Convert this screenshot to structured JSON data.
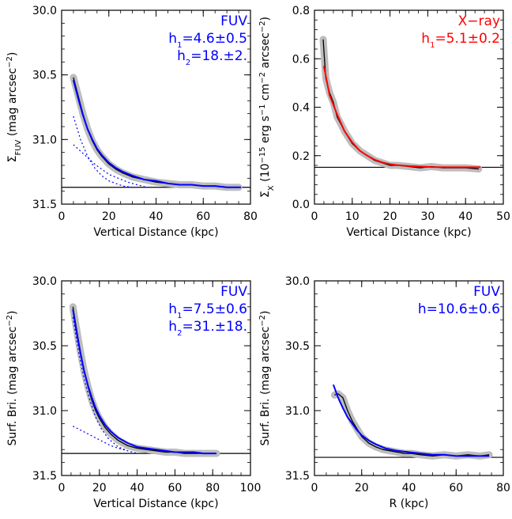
{
  "chart_data": [
    {
      "type": "line",
      "panel": "top-left",
      "xlabel": "Vertical Distance (kpc)",
      "ylabel_parts": [
        {
          "t": "Σ",
          "s": ""
        },
        {
          "t": "FUV",
          "s": "sub"
        },
        {
          "t": " (mag arcsec",
          "s": ""
        },
        {
          "t": "−2",
          "s": "sup"
        },
        {
          "t": ")",
          "s": ""
        }
      ],
      "xlim": [
        0,
        80
      ],
      "ylim": [
        31.5,
        30.0
      ],
      "y_inverted": true,
      "xticks": [
        0,
        20,
        40,
        60,
        80
      ],
      "yticks": [
        30.0,
        30.5,
        31.0,
        31.5
      ],
      "ytick_labels": [
        "30.0",
        "30.5",
        "31.0",
        "31.5"
      ],
      "baseline": 31.37,
      "annotations": {
        "color": "#0000ff",
        "lines": [
          [
            {
              "t": "FUV",
              "s": ""
            }
          ],
          [
            {
              "t": "h",
              "s": ""
            },
            {
              "t": "1",
              "s": "sub"
            },
            {
              "t": "=4.6±0.5",
              "s": ""
            }
          ],
          [
            {
              "t": "h",
              "s": ""
            },
            {
              "t": "2",
              "s": "sub"
            },
            {
              "t": "=18.±2.",
              "s": ""
            }
          ]
        ]
      },
      "series": [
        {
          "role": "data",
          "color": "#000000",
          "x": [
            5,
            7,
            9,
            11,
            13,
            15,
            17,
            20,
            23,
            26,
            30,
            35,
            40,
            45,
            50,
            55,
            60,
            65,
            70,
            75
          ],
          "y": [
            30.52,
            30.66,
            30.8,
            30.92,
            31.01,
            31.08,
            31.13,
            31.19,
            31.23,
            31.26,
            31.29,
            31.31,
            31.33,
            31.34,
            31.35,
            31.35,
            31.36,
            31.36,
            31.37,
            31.37
          ]
        },
        {
          "role": "fit-total",
          "color": "#0000ff",
          "x": [
            5,
            7,
            9,
            11,
            13,
            15,
            17,
            20,
            23,
            26,
            30,
            35,
            40,
            45,
            50,
            55,
            60,
            65,
            70,
            76
          ],
          "y": [
            30.54,
            30.68,
            30.81,
            30.92,
            31.0,
            31.07,
            31.12,
            31.18,
            31.22,
            31.25,
            31.28,
            31.31,
            31.32,
            31.34,
            31.35,
            31.35,
            31.36,
            31.36,
            31.37,
            31.37
          ]
        },
        {
          "role": "component-1",
          "color": "#0000ff",
          "dash": true,
          "x": [
            5,
            8,
            11,
            14,
            17,
            20,
            23,
            26,
            30
          ],
          "y": [
            30.82,
            31.0,
            31.13,
            31.22,
            31.28,
            31.32,
            31.34,
            31.36,
            31.37
          ]
        },
        {
          "role": "component-2",
          "color": "#0000ff",
          "dash": true,
          "x": [
            5,
            8,
            11,
            14,
            17,
            20,
            24,
            28,
            32,
            36
          ],
          "y": [
            31.04,
            31.09,
            31.14,
            31.19,
            31.23,
            31.27,
            31.3,
            31.33,
            31.35,
            31.37
          ]
        }
      ]
    },
    {
      "type": "line",
      "panel": "top-right",
      "xlabel": "Vertical Distance (kpc)",
      "ylabel_parts": [
        {
          "t": "Σ",
          "s": ""
        },
        {
          "t": "X",
          "s": "sub"
        },
        {
          "t": " (10",
          "s": ""
        },
        {
          "t": "−15",
          "s": "sup"
        },
        {
          "t": " erg s",
          "s": ""
        },
        {
          "t": "−1",
          "s": "sup"
        },
        {
          "t": " cm",
          "s": ""
        },
        {
          "t": "−2",
          "s": "sup"
        },
        {
          "t": " arcsec",
          "s": ""
        },
        {
          "t": "−2",
          "s": "sup"
        },
        {
          "t": ")",
          "s": ""
        }
      ],
      "xlim": [
        0,
        50
      ],
      "ylim": [
        0.0,
        0.8
      ],
      "y_inverted": false,
      "xticks": [
        0,
        10,
        20,
        30,
        40,
        50
      ],
      "yticks": [
        0.0,
        0.2,
        0.4,
        0.6,
        0.8
      ],
      "ytick_labels": [
        "0.0",
        "0.2",
        "0.4",
        "0.6",
        "0.8"
      ],
      "baseline": 0.152,
      "annotations": {
        "color": "#ff0000",
        "lines": [
          [
            {
              "t": "X−ray",
              "s": ""
            }
          ],
          [
            {
              "t": "h",
              "s": ""
            },
            {
              "t": "1",
              "s": "sub"
            },
            {
              "t": "=5.1±0.2",
              "s": ""
            }
          ]
        ]
      },
      "series": [
        {
          "role": "data",
          "color": "#000000",
          "x": [
            2.3,
            3,
            4,
            5,
            6,
            7,
            8,
            10,
            12,
            14,
            16,
            18,
            20,
            22,
            25,
            28,
            31,
            34,
            37,
            40,
            43.5
          ],
          "y": [
            0.68,
            0.52,
            0.46,
            0.42,
            0.36,
            0.33,
            0.3,
            0.25,
            0.22,
            0.2,
            0.18,
            0.17,
            0.16,
            0.16,
            0.155,
            0.15,
            0.155,
            0.15,
            0.15,
            0.15,
            0.145
          ]
        },
        {
          "role": "fit",
          "color": "#ff0000",
          "x": [
            2.5,
            4,
            6,
            8,
            10,
            12,
            14,
            16,
            18,
            20,
            22,
            25,
            28,
            31,
            35,
            40,
            44
          ],
          "y": [
            0.57,
            0.45,
            0.37,
            0.3,
            0.255,
            0.22,
            0.2,
            0.183,
            0.172,
            0.165,
            0.161,
            0.157,
            0.155,
            0.153,
            0.152,
            0.152,
            0.152
          ]
        }
      ]
    },
    {
      "type": "line",
      "panel": "bottom-left",
      "xlabel": "Vertical Distance (kpc)",
      "ylabel_parts": [
        {
          "t": "Surf. Bri. (mag arcsec",
          "s": ""
        },
        {
          "t": "−2",
          "s": "sup"
        },
        {
          "t": ")",
          "s": ""
        }
      ],
      "xlim": [
        0,
        100
      ],
      "ylim": [
        31.5,
        30.0
      ],
      "y_inverted": true,
      "xticks": [
        0,
        20,
        40,
        60,
        80,
        100
      ],
      "yticks": [
        30.0,
        30.5,
        31.0,
        31.5
      ],
      "ytick_labels": [
        "30.0",
        "30.5",
        "31.0",
        "31.5"
      ],
      "baseline": 31.33,
      "annotations": {
        "color": "#0000ff",
        "lines": [
          [
            {
              "t": "FUV",
              "s": ""
            }
          ],
          [
            {
              "t": "h",
              "s": ""
            },
            {
              "t": "1",
              "s": "sub"
            },
            {
              "t": "=7.5±0.6",
              "s": ""
            }
          ],
          [
            {
              "t": "h",
              "s": ""
            },
            {
              "t": "2",
              "s": "sub"
            },
            {
              "t": "=31.±18.",
              "s": ""
            }
          ]
        ]
      },
      "series": [
        {
          "role": "data",
          "color": "#000000",
          "x": [
            6,
            8,
            10,
            12,
            14,
            16,
            18,
            20,
            23,
            26,
            30,
            35,
            40,
            45,
            50,
            55,
            60,
            65,
            70,
            75,
            82
          ],
          "y": [
            30.2,
            30.38,
            30.55,
            30.7,
            30.82,
            30.92,
            31.0,
            31.06,
            31.13,
            31.18,
            31.23,
            31.27,
            31.29,
            31.3,
            31.31,
            31.32,
            31.32,
            31.33,
            31.33,
            31.33,
            31.33
          ]
        },
        {
          "role": "fit-total",
          "color": "#0000ff",
          "x": [
            6,
            8,
            10,
            12,
            14,
            16,
            18,
            20,
            23,
            26,
            30,
            35,
            40,
            45,
            50,
            55,
            60,
            65,
            70,
            75,
            82
          ],
          "y": [
            30.22,
            30.4,
            30.56,
            30.7,
            30.81,
            30.9,
            30.98,
            31.04,
            31.11,
            31.16,
            31.21,
            31.25,
            31.28,
            31.29,
            31.3,
            31.31,
            31.32,
            31.32,
            31.32,
            31.33,
            31.33
          ]
        },
        {
          "role": "component-1",
          "color": "#0000ff",
          "dash": true,
          "x": [
            6,
            9,
            12,
            15,
            18,
            21,
            25,
            30,
            35
          ],
          "y": [
            30.28,
            30.55,
            30.76,
            30.92,
            31.05,
            31.14,
            31.22,
            31.28,
            31.31
          ]
        },
        {
          "role": "component-2",
          "color": "#0000ff",
          "dash": true,
          "x": [
            6,
            10,
            14,
            18,
            22,
            26,
            30,
            35,
            40
          ],
          "y": [
            31.12,
            31.15,
            31.18,
            31.21,
            31.24,
            31.27,
            31.29,
            31.31,
            31.33
          ]
        }
      ]
    },
    {
      "type": "line",
      "panel": "bottom-right",
      "xlabel": "R (kpc)",
      "ylabel_parts": [
        {
          "t": "Surf. Bri. (mag arcsec",
          "s": ""
        },
        {
          "t": "−2",
          "s": "sup"
        },
        {
          "t": ")",
          "s": ""
        }
      ],
      "xlim": [
        0,
        80
      ],
      "ylim": [
        31.5,
        30.0
      ],
      "y_inverted": true,
      "xticks": [
        0,
        20,
        40,
        60,
        80
      ],
      "yticks": [
        30.0,
        30.5,
        31.0,
        31.5
      ],
      "ytick_labels": [
        "30.0",
        "30.5",
        "31.0",
        "31.5"
      ],
      "baseline": 31.36,
      "annotations": {
        "color": "#0000ff",
        "lines": [
          [
            {
              "t": "FUV",
              "s": ""
            }
          ],
          [
            {
              "t": "h=10.6±0.6",
              "s": ""
            }
          ]
        ]
      },
      "series": [
        {
          "role": "data",
          "color": "#000000",
          "x": [
            8.5,
            10,
            12,
            14,
            16,
            18,
            20,
            23,
            26,
            29,
            32,
            35,
            38,
            41,
            45,
            50,
            55,
            60,
            65,
            70,
            74
          ],
          "y": [
            30.88,
            30.87,
            30.9,
            31.0,
            31.08,
            31.14,
            31.2,
            31.25,
            31.28,
            31.3,
            31.31,
            31.32,
            31.33,
            31.33,
            31.34,
            31.35,
            31.34,
            31.35,
            31.34,
            31.35,
            31.34
          ]
        },
        {
          "role": "fit",
          "color": "#0000ff",
          "x": [
            8,
            10,
            12,
            14,
            16,
            18,
            20,
            23,
            26,
            30,
            35,
            40,
            45,
            50,
            55,
            60,
            65,
            70,
            74
          ],
          "y": [
            30.8,
            30.9,
            30.98,
            31.05,
            31.1,
            31.15,
            31.19,
            31.23,
            31.26,
            31.29,
            31.31,
            31.32,
            31.33,
            31.34,
            31.34,
            31.35,
            31.35,
            31.35,
            31.35
          ]
        }
      ]
    }
  ]
}
